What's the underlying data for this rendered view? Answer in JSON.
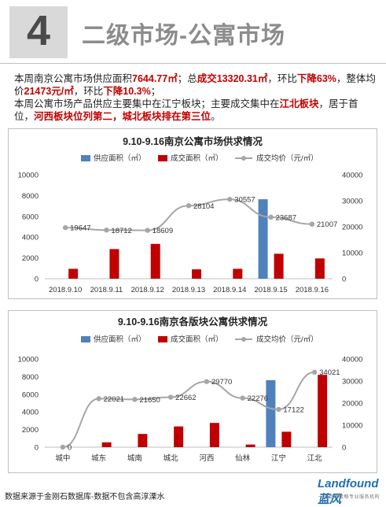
{
  "header": {
    "number": "4",
    "title": "二级市场-公寓市场"
  },
  "summary": {
    "p1_a": "本周南京公寓市场供应面积",
    "p1_supply": "7644.77㎡",
    "p1_b": "；总",
    "p1_deal": "成交13320.31㎡",
    "p1_c": "，环比",
    "p1_drop": "下降63%",
    "p1_d": "，整体均价",
    "p1_price": "21473元/㎡",
    "p1_e": "，环比",
    "p1_pdrop": "下降10.3%",
    "p1_f": "；",
    "p2_a": "本周公寓市场产品供应主要集中在江宁板块；主要成交集中在",
    "p2_jiangbei": "江北板块",
    "p2_b": "，居于首位，",
    "p2_rank": "河西板块位列第二，城北板块排在第三位",
    "p2_c": "。"
  },
  "chart_data": [
    {
      "type": "bar",
      "title": "9.10-9.16南京公寓市场供求情况",
      "categories": [
        "2018.9.10",
        "2018.9.11",
        "2018.9.12",
        "2018.9.13",
        "2018.9.14",
        "2018.9.15",
        "2018.9.16"
      ],
      "series": [
        {
          "name": "供应面积（㎡）",
          "type": "bar",
          "axis": "left",
          "color": "#4f81bd",
          "values": [
            0,
            0,
            0,
            0,
            0,
            7645,
            0
          ]
        },
        {
          "name": "成交面积（㎡）",
          "type": "bar",
          "axis": "left",
          "color": "#c00000",
          "values": [
            950,
            2850,
            3350,
            900,
            950,
            2400,
            1950
          ]
        },
        {
          "name": "成交均价（元/㎡）",
          "type": "line",
          "axis": "right",
          "color": "#a6a6a6",
          "values": [
            19647,
            18712,
            18609,
            28104,
            30557,
            23687,
            21007
          ],
          "labels": [
            "19647",
            "18712",
            "18609",
            "28104",
            "30557",
            "23687",
            "21007"
          ]
        }
      ],
      "yleft": {
        "min": 0,
        "max": 10000,
        "ticks": [
          "0",
          "2000",
          "4000",
          "6000",
          "8000",
          "10000"
        ]
      },
      "yright": {
        "min": 0,
        "max": 40000,
        "ticks": [
          "0",
          "10000",
          "20000",
          "30000",
          "40000"
        ]
      },
      "legend": "top"
    },
    {
      "type": "bar",
      "title": "9.10-9.16南京各版块公寓供求情况",
      "categories": [
        "城中",
        "城东",
        "城南",
        "城北",
        "河西",
        "仙林",
        "江宁",
        "江北"
      ],
      "series": [
        {
          "name": "供应面积（㎡）",
          "type": "bar",
          "axis": "left",
          "color": "#4f81bd",
          "values": [
            0,
            0,
            0,
            0,
            0,
            0,
            7600,
            0
          ]
        },
        {
          "name": "成交面积（㎡）",
          "type": "bar",
          "axis": "left",
          "color": "#c00000",
          "values": [
            0,
            550,
            1500,
            2350,
            2750,
            300,
            1750,
            8200
          ]
        },
        {
          "name": "成交均价（元/㎡）",
          "type": "line",
          "axis": "right",
          "color": "#a6a6a6",
          "values": [
            0,
            22021,
            21650,
            22662,
            29770,
            22276,
            17122,
            34021
          ],
          "labels": [
            "0",
            "22021",
            "21650",
            "22662",
            "29770",
            "22276",
            "17122",
            "34021"
          ]
        }
      ],
      "yleft": {
        "min": 0,
        "max": 10000,
        "ticks": [
          "0",
          "2000",
          "4000",
          "6000",
          "8000",
          "10000"
        ]
      },
      "yright": {
        "min": 0,
        "max": 40000,
        "ticks": [
          "0",
          "10000",
          "20000",
          "30000",
          "40000"
        ]
      },
      "legend": "top"
    }
  ],
  "footer": {
    "source": "数据来源于金刚石数据库-数据不包含高淳溧水",
    "logo": "Landfound蓝风",
    "logo_sub": "一流品牌策略专业服务机构"
  }
}
